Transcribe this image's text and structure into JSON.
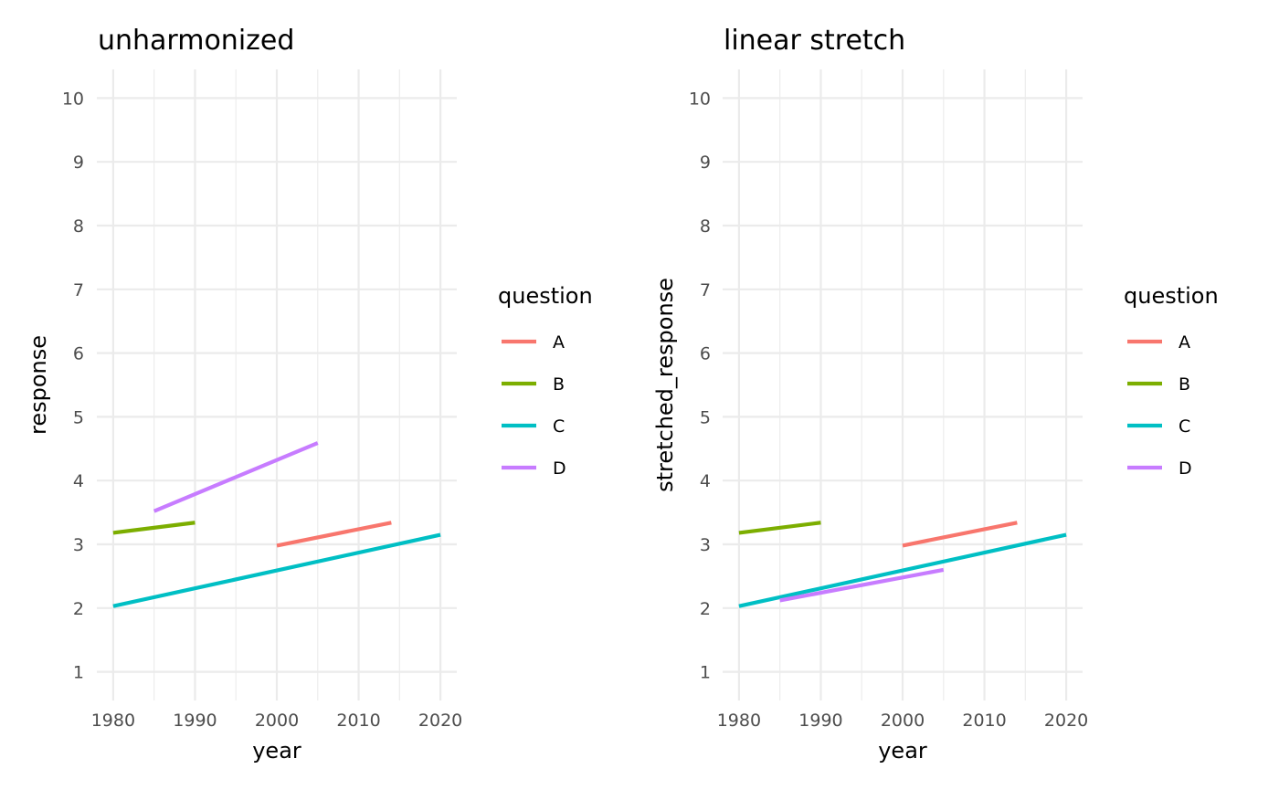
{
  "chart_data": [
    {
      "type": "line",
      "title": "unharmonized",
      "xlabel": "year",
      "ylabel": "response",
      "xlim": [
        1978,
        2022
      ],
      "ylim": [
        0.55,
        10.45
      ],
      "x_ticks": [
        1980,
        1990,
        2000,
        2010,
        2020
      ],
      "y_ticks": [
        1,
        2,
        3,
        4,
        5,
        6,
        7,
        8,
        9,
        10
      ],
      "grid": true,
      "legend": {
        "title": "question",
        "placement": "right"
      },
      "series": [
        {
          "name": "A",
          "color": "#F8766D",
          "x": [
            2000,
            2014
          ],
          "y": [
            2.98,
            3.34
          ]
        },
        {
          "name": "B",
          "color": "#7CAE00",
          "x": [
            1980,
            1990
          ],
          "y": [
            3.18,
            3.34
          ]
        },
        {
          "name": "C",
          "color": "#00BFC4",
          "x": [
            1980,
            2020
          ],
          "y": [
            2.03,
            3.15
          ]
        },
        {
          "name": "D",
          "color": "#C77CFF",
          "x": [
            1985,
            2005
          ],
          "y": [
            3.52,
            4.59
          ]
        }
      ]
    },
    {
      "type": "line",
      "title": "linear stretch",
      "xlabel": "year",
      "ylabel": "stretched_response",
      "xlim": [
        1978,
        2022
      ],
      "ylim": [
        0.55,
        10.45
      ],
      "x_ticks": [
        1980,
        1990,
        2000,
        2010,
        2020
      ],
      "y_ticks": [
        1,
        2,
        3,
        4,
        5,
        6,
        7,
        8,
        9,
        10
      ],
      "grid": true,
      "legend": {
        "title": "question",
        "placement": "right"
      },
      "series": [
        {
          "name": "A",
          "color": "#F8766D",
          "x": [
            2000,
            2014
          ],
          "y": [
            2.98,
            3.34
          ]
        },
        {
          "name": "B",
          "color": "#7CAE00",
          "x": [
            1980,
            1990
          ],
          "y": [
            3.18,
            3.34
          ]
        },
        {
          "name": "C",
          "color": "#00BFC4",
          "x": [
            1980,
            2020
          ],
          "y": [
            2.03,
            3.15
          ]
        },
        {
          "name": "D",
          "color": "#C77CFF",
          "x": [
            1985,
            2005
          ],
          "y": [
            2.12,
            2.6
          ]
        }
      ]
    }
  ]
}
